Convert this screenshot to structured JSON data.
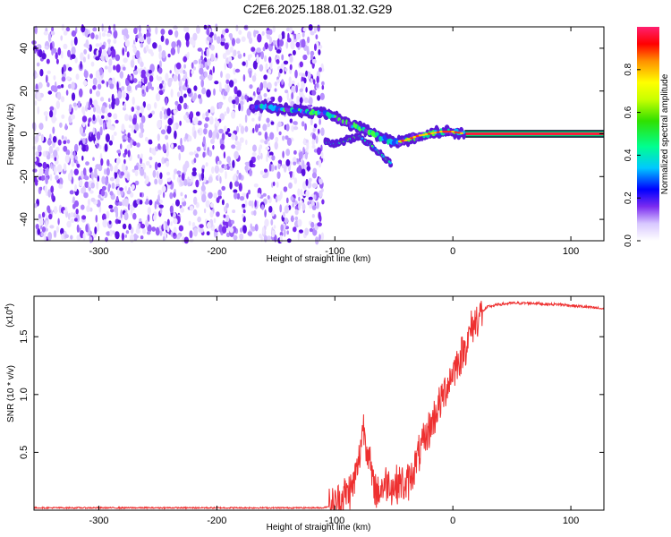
{
  "title": "C2E6.2025.188.01.32.G29",
  "chart_data": [
    {
      "type": "heatmap",
      "xlabel": "Height of straight line (km)",
      "ylabel": "Frequency (Hz)",
      "xlim": [
        -355,
        128
      ],
      "ylim": [
        -50,
        50
      ],
      "x_ticks": [
        -300,
        -200,
        -100,
        0,
        100
      ],
      "y_ticks": [
        -40,
        -20,
        0,
        20,
        40
      ],
      "colorbar": {
        "label": "Normalized spectral amplitude",
        "range": [
          0,
          1
        ],
        "ticks": [
          "0.0",
          "0.2",
          "0.4",
          "0.6",
          "0.8"
        ],
        "tick_values": [
          0,
          0.2,
          0.4,
          0.6,
          0.8
        ]
      },
      "noise_region": {
        "x": [
          -355,
          -110
        ],
        "y": [
          -50,
          50
        ]
      },
      "signal_track": {
        "x": [
          -170,
          -160,
          -150,
          -140,
          -130,
          -120,
          -110,
          -100,
          -90,
          -80,
          -70,
          -60,
          -50,
          -40,
          -30,
          -20,
          -10,
          0,
          10,
          128
        ],
        "y": [
          12,
          13,
          12,
          11,
          11,
          10,
          10,
          8,
          5,
          3,
          1,
          -2,
          -4,
          -3,
          -1,
          0,
          1,
          1,
          0,
          0
        ]
      },
      "side_branch": {
        "x": [
          -108,
          -100,
          -90,
          -80,
          -70,
          -60,
          -52
        ],
        "y": [
          -4,
          -5,
          -3,
          -1,
          -5,
          -10,
          -14
        ]
      },
      "band_start_x": 10
    },
    {
      "type": "line",
      "xlabel": "Height of straight line (km)",
      "ylabel": "SNR (10 * v/v)",
      "scale_label": "(x10",
      "scale_exponent": "4",
      "xlim": [
        -355,
        128
      ],
      "ylim": [
        0,
        1.85
      ],
      "x_ticks": [
        -300,
        -200,
        -100,
        0,
        100
      ],
      "y_ticks": [
        0.5,
        1.0,
        1.5
      ],
      "y_tick_labels": [
        "0.5",
        "1.0",
        "1.5"
      ],
      "color": "#ee3030",
      "series": [
        {
          "x": [
            -355,
            -200,
            -110,
            -100,
            -95,
            -90,
            -85,
            -80,
            -76,
            -72,
            -68,
            -64,
            -60,
            -55,
            -50,
            -45,
            -40,
            -35,
            -32,
            -28,
            -24,
            -20,
            -16,
            -12,
            -8,
            -4,
            0,
            5,
            10,
            15,
            20,
            25,
            30,
            40,
            50,
            60,
            70,
            80,
            90,
            100,
            110,
            120,
            128
          ],
          "y": [
            0.02,
            0.02,
            0.02,
            0.05,
            0.1,
            0.15,
            0.2,
            0.4,
            0.75,
            0.5,
            0.25,
            0.15,
            0.2,
            0.25,
            0.2,
            0.25,
            0.2,
            0.3,
            0.4,
            0.5,
            0.6,
            0.7,
            0.8,
            0.9,
            1.0,
            1.1,
            1.2,
            1.3,
            1.4,
            1.55,
            1.65,
            1.72,
            1.76,
            1.78,
            1.79,
            1.79,
            1.79,
            1.78,
            1.78,
            1.77,
            1.76,
            1.75,
            1.74
          ]
        }
      ]
    }
  ]
}
